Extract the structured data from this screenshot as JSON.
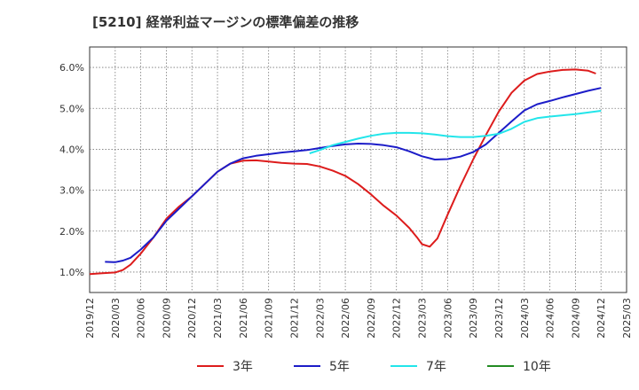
{
  "chart_data": {
    "type": "line",
    "title": "[5210]  経常利益マージンの標準偏差の推移",
    "xlabel": "",
    "ylabel": "",
    "x": [
      "2019/12",
      "2020/03",
      "2020/06",
      "2020/09",
      "2020/12",
      "2021/03",
      "2021/06",
      "2021/09",
      "2021/12",
      "2022/03",
      "2022/06",
      "2022/09",
      "2022/12",
      "2023/03",
      "2023/06",
      "2023/09",
      "2023/12",
      "2024/03",
      "2024/06",
      "2024/09",
      "2024/12",
      "2025/03"
    ],
    "yticks": [
      "1.0%",
      "2.0%",
      "3.0%",
      "4.0%",
      "5.0%",
      "6.0%"
    ],
    "ylim": [
      0.5,
      6.5
    ],
    "grid": true,
    "legend_position": "bottom",
    "series": [
      {
        "name": "3年",
        "color": "#dd1c1c",
        "points": [
          [
            0,
            0.95
          ],
          [
            0.5,
            0.97
          ],
          [
            1,
            0.99
          ],
          [
            1.3,
            1.05
          ],
          [
            1.6,
            1.18
          ],
          [
            2,
            1.45
          ],
          [
            2.5,
            1.85
          ],
          [
            3,
            2.3
          ],
          [
            3.5,
            2.6
          ],
          [
            4,
            2.85
          ],
          [
            4.5,
            3.15
          ],
          [
            5,
            3.45
          ],
          [
            5.5,
            3.65
          ],
          [
            6,
            3.72
          ],
          [
            6.5,
            3.73
          ],
          [
            7,
            3.7
          ],
          [
            7.5,
            3.67
          ],
          [
            8,
            3.65
          ],
          [
            8.5,
            3.64
          ],
          [
            9,
            3.58
          ],
          [
            9.5,
            3.48
          ],
          [
            10,
            3.35
          ],
          [
            10.5,
            3.15
          ],
          [
            11,
            2.9
          ],
          [
            11.5,
            2.62
          ],
          [
            12,
            2.38
          ],
          [
            12.5,
            2.08
          ],
          [
            12.8,
            1.85
          ],
          [
            13,
            1.68
          ],
          [
            13.3,
            1.62
          ],
          [
            13.6,
            1.82
          ],
          [
            14,
            2.4
          ],
          [
            14.5,
            3.1
          ],
          [
            15,
            3.75
          ],
          [
            15.5,
            4.35
          ],
          [
            16,
            4.92
          ],
          [
            16.5,
            5.38
          ],
          [
            17,
            5.68
          ],
          [
            17.5,
            5.84
          ],
          [
            18,
            5.9
          ],
          [
            18.5,
            5.94
          ],
          [
            19,
            5.95
          ],
          [
            19.5,
            5.92
          ],
          [
            19.8,
            5.85
          ]
        ]
      },
      {
        "name": "5年",
        "color": "#1c1cc8",
        "points": [
          [
            0.6,
            1.25
          ],
          [
            1,
            1.24
          ],
          [
            1.3,
            1.28
          ],
          [
            1.6,
            1.35
          ],
          [
            2,
            1.55
          ],
          [
            2.5,
            1.85
          ],
          [
            3,
            2.25
          ],
          [
            3.5,
            2.55
          ],
          [
            4,
            2.85
          ],
          [
            4.5,
            3.15
          ],
          [
            5,
            3.45
          ],
          [
            5.5,
            3.65
          ],
          [
            6,
            3.78
          ],
          [
            6.5,
            3.84
          ],
          [
            7,
            3.88
          ],
          [
            7.5,
            3.92
          ],
          [
            8,
            3.95
          ],
          [
            8.5,
            3.98
          ],
          [
            9,
            4.03
          ],
          [
            9.5,
            4.08
          ],
          [
            10,
            4.12
          ],
          [
            10.5,
            4.14
          ],
          [
            11,
            4.13
          ],
          [
            11.5,
            4.1
          ],
          [
            12,
            4.05
          ],
          [
            12.5,
            3.95
          ],
          [
            13,
            3.83
          ],
          [
            13.5,
            3.75
          ],
          [
            14,
            3.76
          ],
          [
            14.5,
            3.82
          ],
          [
            15,
            3.93
          ],
          [
            15.5,
            4.12
          ],
          [
            16,
            4.4
          ],
          [
            16.5,
            4.68
          ],
          [
            17,
            4.95
          ],
          [
            17.5,
            5.1
          ],
          [
            18,
            5.18
          ],
          [
            18.5,
            5.27
          ],
          [
            19,
            5.35
          ],
          [
            19.5,
            5.43
          ],
          [
            20,
            5.5
          ]
        ]
      },
      {
        "name": "7年",
        "color": "#22e5ea",
        "points": [
          [
            8.6,
            3.9
          ],
          [
            9,
            3.98
          ],
          [
            9.5,
            4.1
          ],
          [
            10,
            4.18
          ],
          [
            10.5,
            4.26
          ],
          [
            11,
            4.33
          ],
          [
            11.5,
            4.38
          ],
          [
            12,
            4.4
          ],
          [
            12.5,
            4.4
          ],
          [
            13,
            4.39
          ],
          [
            13.5,
            4.36
          ],
          [
            14,
            4.32
          ],
          [
            14.5,
            4.3
          ],
          [
            15,
            4.3
          ],
          [
            15.5,
            4.33
          ],
          [
            16,
            4.38
          ],
          [
            16.5,
            4.5
          ],
          [
            17,
            4.67
          ],
          [
            17.5,
            4.76
          ],
          [
            18,
            4.8
          ],
          [
            18.5,
            4.83
          ],
          [
            19,
            4.86
          ],
          [
            19.5,
            4.9
          ],
          [
            20,
            4.94
          ]
        ]
      },
      {
        "name": "10年",
        "color": "#228b22",
        "points": []
      }
    ]
  }
}
